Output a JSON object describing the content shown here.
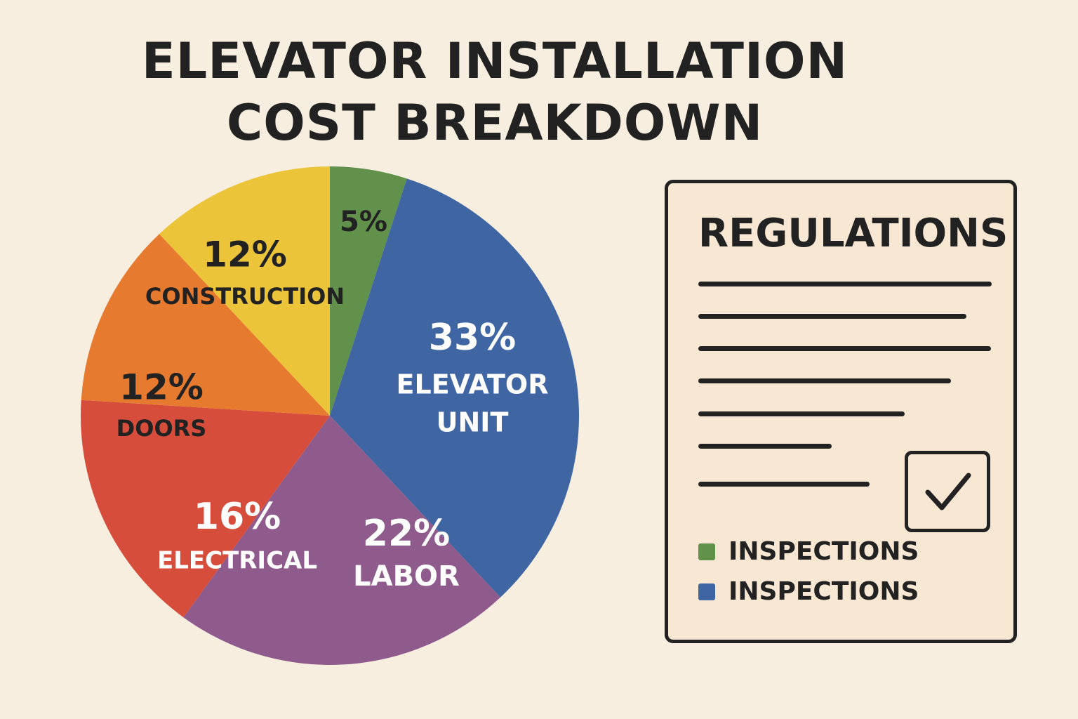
{
  "chart_data": {
    "type": "pie",
    "title": "ELEVATOR INSTALLATION COST BREAKDOWN",
    "title_lines": [
      "ELEVATOR INSTALLATION",
      "COST BREAKDOWN"
    ],
    "slices": [
      {
        "label_lines": [],
        "label": "",
        "value": 5,
        "value_label": "5%",
        "color": "#62914c",
        "text_color": "#222222"
      },
      {
        "label_lines": [
          "ELEVATOR",
          "UNIT"
        ],
        "label": "ELEVATOR UNIT",
        "value": 33,
        "value_label": "33%",
        "color": "#3f66a3",
        "text_color": "#ffffff"
      },
      {
        "label_lines": [
          "LABOR"
        ],
        "label": "LABOR",
        "value": 22,
        "value_label": "22%",
        "color": "#8f5b8d",
        "text_color": "#ffffff"
      },
      {
        "label_lines": [
          "ELECTRICAL"
        ],
        "label": "ELECTRICAL",
        "value": 16,
        "value_label": "16%",
        "color": "#d64d3c",
        "text_color": "#ffffff"
      },
      {
        "label_lines": [
          "DOORS"
        ],
        "label": "DOORS",
        "value": 12,
        "value_label": "12%",
        "color": "#e67a2e",
        "text_color": "#222222"
      },
      {
        "label_lines": [
          "CONSTRUCTION"
        ],
        "label": "CONSTRUCTION",
        "value": 12,
        "value_label": "12%",
        "color": "#ecc43a",
        "text_color": "#222222"
      }
    ]
  },
  "regulations": {
    "title": "REGULATIONS",
    "checkbox_checked": true,
    "legend": [
      {
        "label": "INSPECTIONS",
        "color": "#62914c"
      },
      {
        "label": "INSPECTIONS",
        "color": "#3f66a3"
      }
    ]
  }
}
